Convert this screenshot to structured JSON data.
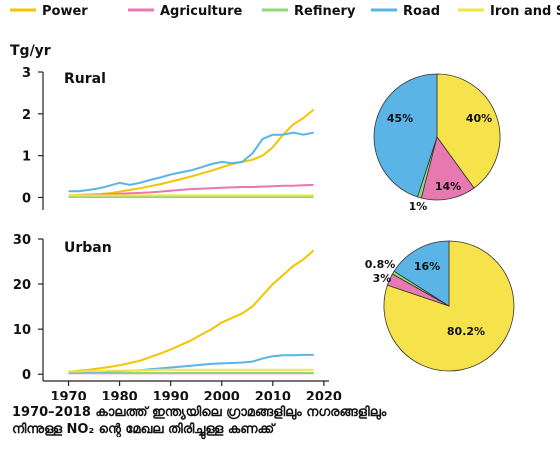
{
  "colors": {
    "power": "#F5C400",
    "agriculture": "#E879B0",
    "refinery": "#90D97A",
    "road": "#5AB4E5",
    "iron_steel": "#F6E24A",
    "axis": "#222222"
  },
  "legend": [
    "Power",
    "Agriculture",
    "Refinery",
    "Road",
    "Iron and Steel"
  ],
  "unit_label": "Tg/yr",
  "caption": {
    "line1": "1970–2018 കാലത്ത് ഇന്ത്യയിലെ ഗ്രാമങ്ങളിലും നഗരങ്ങളിലും",
    "line2": "നിന്നുള്ള NO₂ ന്റെ മേഖല തിരിച്ചുള്ള കണക്ക്"
  },
  "chart_data": [
    {
      "type": "line",
      "title": "Rural",
      "ylabel": "Tg/yr",
      "xlim": [
        1965,
        2021
      ],
      "ylim": [
        -0.3,
        3
      ],
      "xticks": [
        1970,
        1980,
        1990,
        2000,
        2010,
        2020
      ],
      "yticks": [
        0,
        1,
        2,
        3
      ],
      "x": [
        1970,
        1972,
        1974,
        1976,
        1978,
        1980,
        1982,
        1984,
        1986,
        1988,
        1990,
        1992,
        1994,
        1996,
        1998,
        2000,
        2002,
        2004,
        2006,
        2008,
        2010,
        2012,
        2014,
        2016,
        2018
      ],
      "series": [
        {
          "name": "Power",
          "color_key": "power",
          "values": [
            0.05,
            0.06,
            0.07,
            0.08,
            0.1,
            0.14,
            0.18,
            0.22,
            0.27,
            0.32,
            0.38,
            0.44,
            0.5,
            0.57,
            0.64,
            0.72,
            0.8,
            0.85,
            0.9,
            1.0,
            1.2,
            1.5,
            1.75,
            1.9,
            2.1
          ]
        },
        {
          "name": "Agriculture",
          "color_key": "agriculture",
          "values": [
            0.04,
            0.05,
            0.06,
            0.07,
            0.08,
            0.09,
            0.1,
            0.11,
            0.12,
            0.14,
            0.16,
            0.18,
            0.2,
            0.21,
            0.22,
            0.23,
            0.24,
            0.25,
            0.25,
            0.26,
            0.27,
            0.28,
            0.28,
            0.29,
            0.3
          ]
        },
        {
          "name": "Refinery",
          "color_key": "refinery",
          "values": [
            0.01,
            0.01,
            0.01,
            0.01,
            0.01,
            0.01,
            0.01,
            0.01,
            0.01,
            0.01,
            0.01,
            0.01,
            0.01,
            0.01,
            0.01,
            0.01,
            0.01,
            0.01,
            0.01,
            0.01,
            0.01,
            0.01,
            0.01,
            0.01,
            0.01
          ]
        },
        {
          "name": "Road",
          "color_key": "road",
          "values": [
            0.15,
            0.15,
            0.18,
            0.22,
            0.28,
            0.35,
            0.3,
            0.35,
            0.42,
            0.48,
            0.55,
            0.6,
            0.65,
            0.72,
            0.8,
            0.85,
            0.82,
            0.85,
            1.05,
            1.4,
            1.5,
            1.5,
            1.55,
            1.5,
            1.55
          ]
        },
        {
          "name": "Iron and Steel",
          "color_key": "iron_steel",
          "values": [
            0.05,
            0.05,
            0.05,
            0.05,
            0.05,
            0.05,
            0.05,
            0.05,
            0.05,
            0.05,
            0.05,
            0.05,
            0.05,
            0.05,
            0.05,
            0.05,
            0.05,
            0.05,
            0.05,
            0.05,
            0.05,
            0.05,
            0.05,
            0.05,
            0.05
          ]
        }
      ]
    },
    {
      "type": "line",
      "title": "Urban",
      "xlim": [
        1965,
        2021
      ],
      "ylim": [
        -1.5,
        30
      ],
      "xticks": [
        1970,
        1980,
        1990,
        2000,
        2010,
        2020
      ],
      "yticks": [
        0,
        10,
        20,
        30
      ],
      "x": [
        1970,
        1972,
        1974,
        1976,
        1978,
        1980,
        1982,
        1984,
        1986,
        1988,
        1990,
        1992,
        1994,
        1996,
        1998,
        2000,
        2002,
        2004,
        2006,
        2008,
        2010,
        2012,
        2014,
        2016,
        2018
      ],
      "series": [
        {
          "name": "Power",
          "color_key": "power",
          "values": [
            0.5,
            0.8,
            1.0,
            1.3,
            1.6,
            2.0,
            2.5,
            3.0,
            3.8,
            4.6,
            5.5,
            6.5,
            7.5,
            8.8,
            10.0,
            11.5,
            12.5,
            13.5,
            15.0,
            17.5,
            20.0,
            22.0,
            24.0,
            25.5,
            27.5
          ]
        },
        {
          "name": "Agriculture",
          "color_key": "agriculture",
          "values": [
            0.2,
            0.2,
            0.2,
            0.2,
            0.2,
            0.2,
            0.2,
            0.2,
            0.2,
            0.2,
            0.2,
            0.2,
            0.2,
            0.2,
            0.2,
            0.2,
            0.2,
            0.2,
            0.2,
            0.2,
            0.2,
            0.2,
            0.2,
            0.2,
            0.2
          ]
        },
        {
          "name": "Refinery",
          "color_key": "refinery",
          "values": [
            0.3,
            0.3,
            0.3,
            0.3,
            0.3,
            0.3,
            0.3,
            0.3,
            0.3,
            0.3,
            0.3,
            0.3,
            0.3,
            0.3,
            0.3,
            0.3,
            0.3,
            0.3,
            0.3,
            0.3,
            0.3,
            0.3,
            0.3,
            0.3,
            0.3
          ]
        },
        {
          "name": "Road",
          "color_key": "road",
          "values": [
            0.4,
            0.45,
            0.5,
            0.55,
            0.6,
            0.7,
            0.8,
            0.9,
            1.1,
            1.3,
            1.5,
            1.7,
            1.9,
            2.1,
            2.3,
            2.4,
            2.5,
            2.6,
            2.8,
            3.5,
            4.0,
            4.2,
            4.2,
            4.3,
            4.3
          ]
        },
        {
          "name": "Iron and Steel",
          "color_key": "iron_steel",
          "values": [
            0.6,
            0.6,
            0.7,
            0.7,
            0.8,
            0.8,
            0.8,
            0.9,
            0.9,
            1.0,
            1.0,
            1.0,
            1.0,
            1.0,
            1.0,
            1.0,
            1.0,
            1.0,
            1.0,
            1.0,
            1.0,
            1.0,
            1.0,
            1.0,
            1.0
          ]
        }
      ]
    },
    {
      "type": "pie",
      "title": "Rural",
      "slices": [
        {
          "name": "Iron and Steel",
          "color_key": "iron_steel",
          "value": 40,
          "label": "40%"
        },
        {
          "name": "Agriculture",
          "color_key": "agriculture",
          "value": 14,
          "label": "14%"
        },
        {
          "name": "Refinery",
          "color_key": "refinery",
          "value": 1,
          "label": "1%"
        },
        {
          "name": "Road",
          "color_key": "road",
          "value": 45,
          "label": "45%"
        }
      ]
    },
    {
      "type": "pie",
      "title": "Urban",
      "slices": [
        {
          "name": "Iron and Steel",
          "color_key": "iron_steel",
          "value": 80.2,
          "label": "80.2%"
        },
        {
          "name": "Agriculture",
          "color_key": "agriculture",
          "value": 3,
          "label": "3%"
        },
        {
          "name": "Refinery",
          "color_key": "refinery",
          "value": 0.8,
          "label": "0.8%"
        },
        {
          "name": "Road",
          "color_key": "road",
          "value": 16,
          "label": "16%"
        }
      ]
    }
  ]
}
